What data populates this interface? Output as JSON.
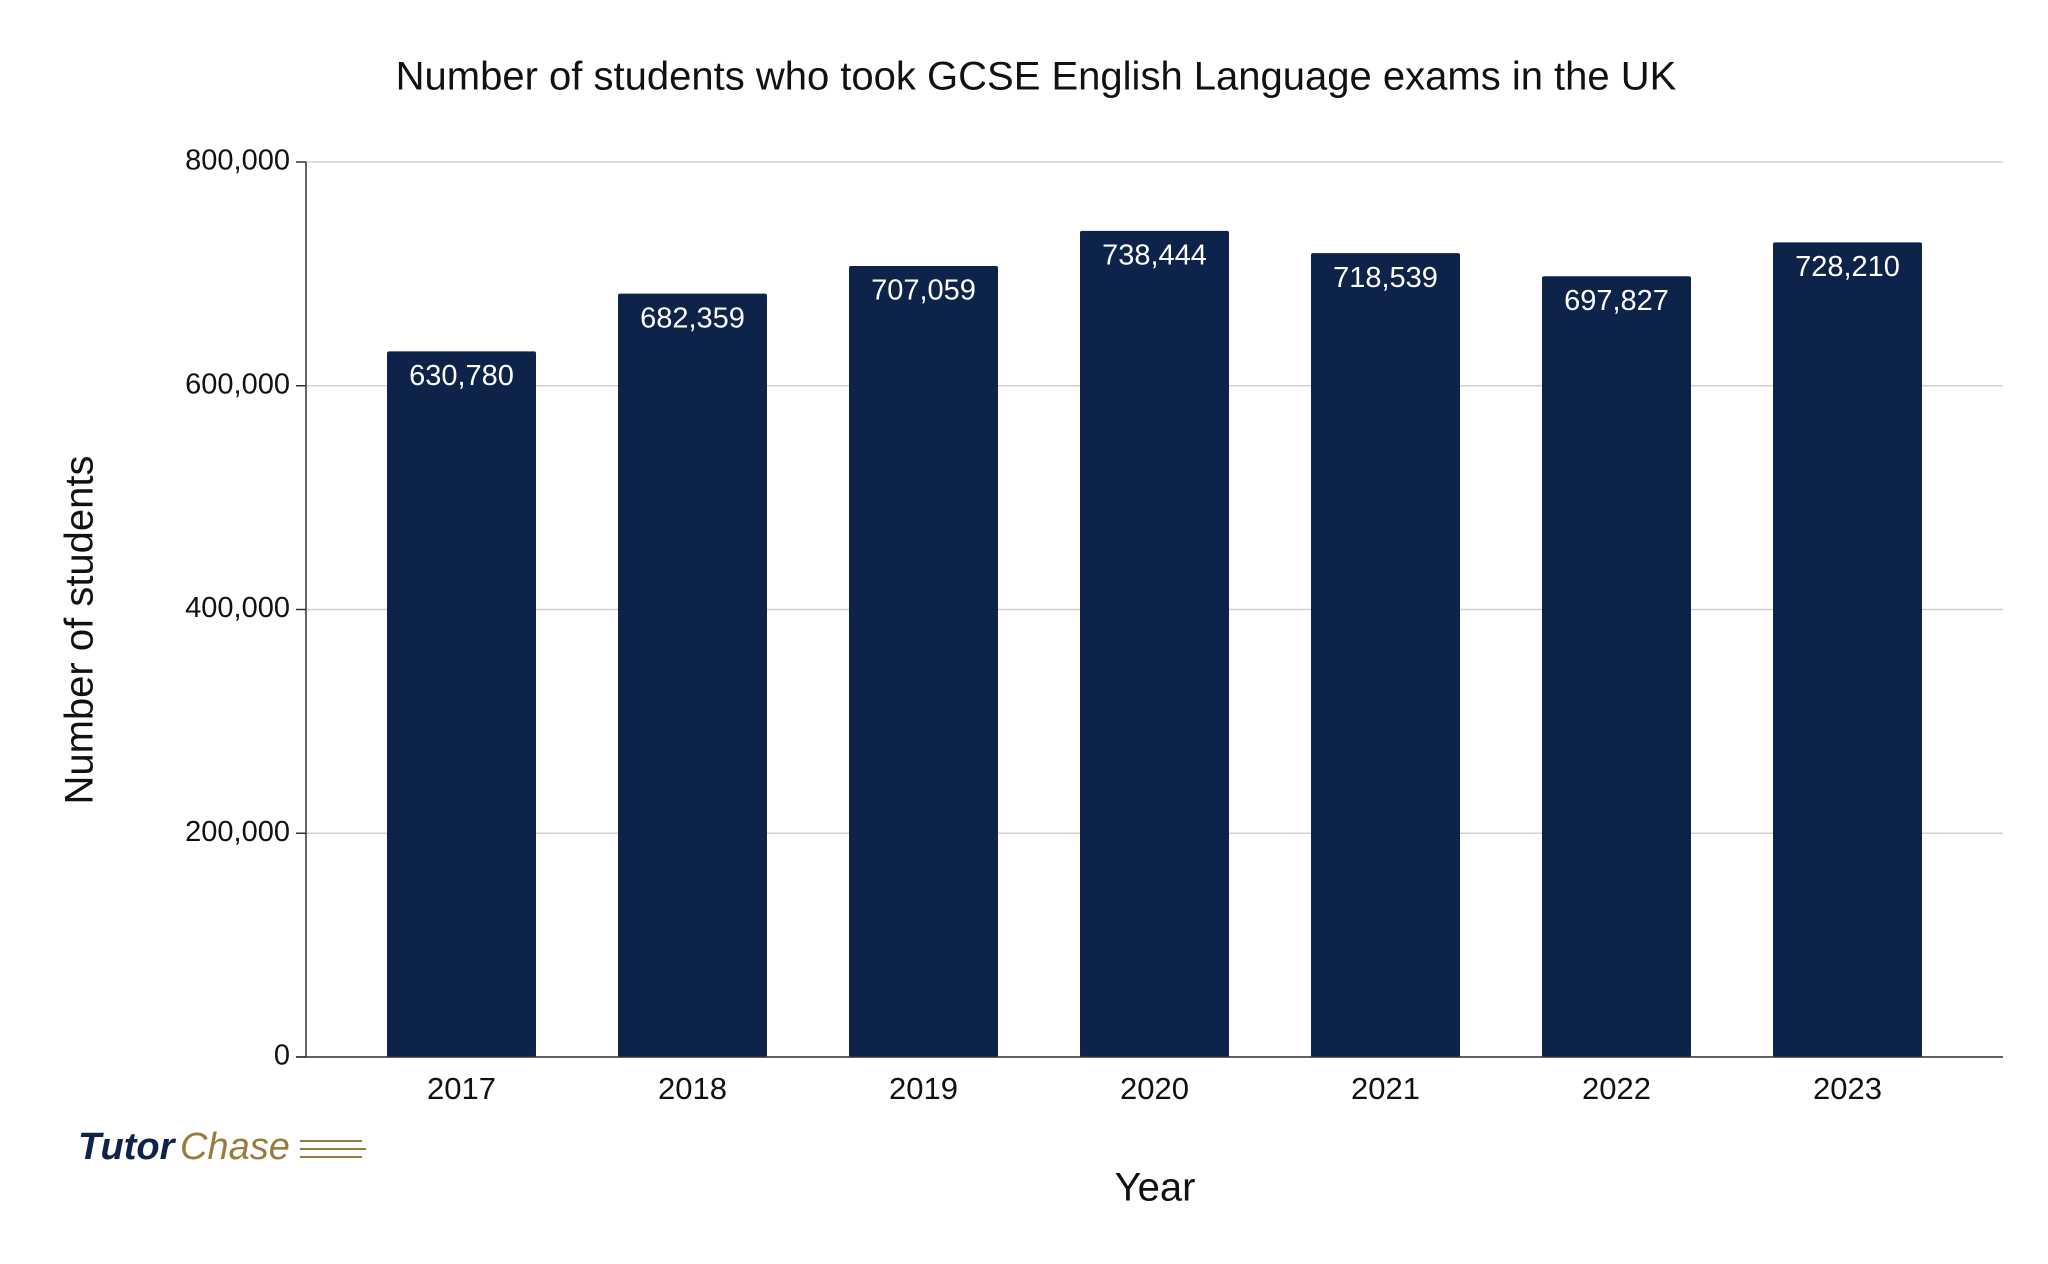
{
  "chart_data": {
    "type": "bar",
    "title": "Number of students who took GCSE English Language exams in the UK",
    "x_label": "Year",
    "y_label": "Number of students",
    "categories": [
      "2017",
      "2018",
      "2019",
      "2020",
      "2021",
      "2022",
      "2023"
    ],
    "values": [
      630780,
      682359,
      707059,
      738444,
      718539,
      697827,
      728210
    ],
    "value_labels": [
      "630,780",
      "682,359",
      "707,059",
      "738,444",
      "718,539",
      "697,827",
      "728,210"
    ],
    "color": "#0e2349",
    "ylim": [
      0,
      800000
    ],
    "yticks": [
      0,
      {
        "value": 200000,
        "label": "200,000"
      },
      {
        "value": 400000,
        "label": "400,000"
      },
      {
        "value": 600000,
        "label": "600,000"
      },
      {
        "value": 800000,
        "label": "800,000"
      }
    ],
    "grid": true
  },
  "brand": {
    "first": "Tutor",
    "second": "Chase"
  }
}
